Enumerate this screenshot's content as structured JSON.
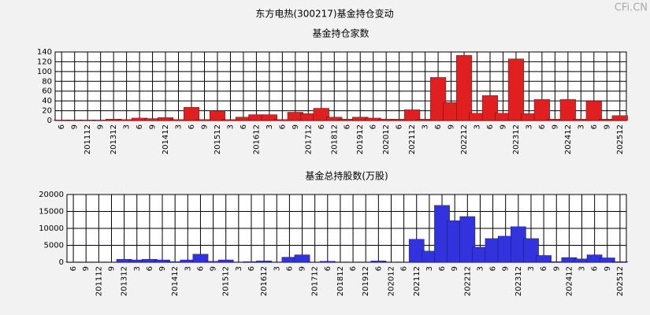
{
  "title": "东方电热(300217)基金持仓变动",
  "watermark": "CFi.CN",
  "chart_data": [
    {
      "type": "bar",
      "title": "基金持仓家数",
      "color": "#e02020",
      "grid": true,
      "categories": [
        "6",
        "9",
        "201112",
        "9",
        "201312",
        "3",
        "6",
        "9",
        "201412",
        "3",
        "6",
        "9",
        "201512",
        "3",
        "6",
        "201612",
        "3",
        "6",
        "9",
        "201712",
        "6",
        "201812",
        "6",
        "201912",
        "6",
        "202012",
        "6",
        "202112",
        "3",
        "6",
        "9",
        "202212",
        "3",
        "6",
        "9",
        "202312",
        "3",
        "6",
        "9",
        "202412",
        "3",
        "6",
        "9",
        "202512"
      ],
      "values": [
        1,
        1,
        1,
        1,
        3,
        2,
        5,
        4,
        6,
        2,
        27,
        2,
        20,
        2,
        7,
        12,
        12,
        2,
        17,
        14,
        25,
        7,
        3,
        7,
        5,
        3,
        3,
        22,
        3,
        88,
        37,
        133,
        15,
        51,
        15,
        126,
        14,
        43,
        3,
        43,
        3,
        40,
        3,
        10
      ],
      "ylim": [
        0,
        140
      ],
      "yticks": [
        0,
        20,
        40,
        60,
        80,
        100,
        120,
        140
      ]
    },
    {
      "type": "bar",
      "title": "基金总持股数(万股)",
      "color": "#3333dd",
      "grid": true,
      "categories": [
        "6",
        "9",
        "201112",
        "9",
        "201312",
        "3",
        "6",
        "9",
        "201412",
        "3",
        "6",
        "9",
        "201512",
        "3",
        "6",
        "201612",
        "3",
        "6",
        "9",
        "201712",
        "6",
        "201812",
        "6",
        "201912",
        "6",
        "202012",
        "6",
        "202112",
        "3",
        "6",
        "9",
        "202212",
        "3",
        "6",
        "9",
        "202312",
        "3",
        "6",
        "9",
        "202412",
        "3",
        "6",
        "9",
        "202512"
      ],
      "values": [
        100,
        100,
        100,
        100,
        900,
        700,
        900,
        700,
        200,
        700,
        2400,
        300,
        700,
        100,
        200,
        400,
        100,
        1500,
        2200,
        100,
        300,
        100,
        100,
        100,
        400,
        100,
        100,
        6800,
        3300,
        16800,
        12300,
        13500,
        4500,
        7000,
        7700,
        10500,
        7000,
        2000,
        200,
        1400,
        1000,
        2200,
        1300,
        200
      ],
      "ylim": [
        0,
        20000
      ],
      "yticks": [
        0,
        5000,
        10000,
        15000,
        20000
      ]
    }
  ]
}
